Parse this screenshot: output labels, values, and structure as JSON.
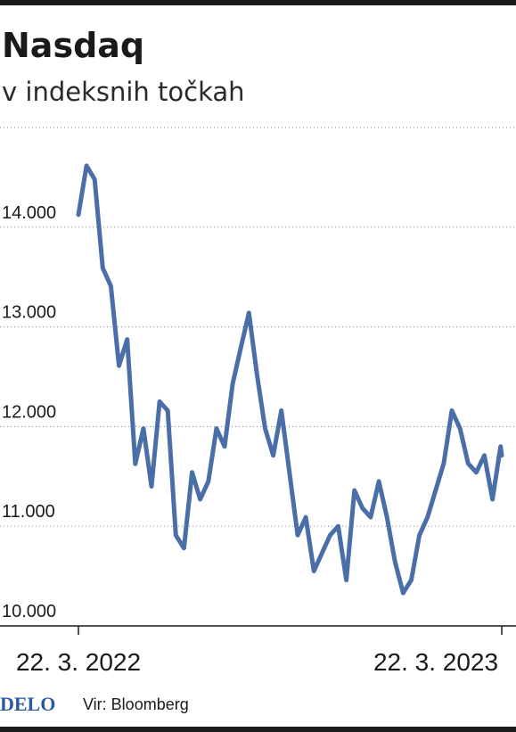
{
  "chart_data": {
    "type": "line",
    "title": "Nasdaq",
    "subtitle": "v indeksnih točkah",
    "x": [
      "2022-03-22",
      "2022-03-29",
      "2022-04-05",
      "2022-04-12",
      "2022-04-19",
      "2022-04-26",
      "2022-05-03",
      "2022-05-10",
      "2022-05-17",
      "2022-05-24",
      "2022-05-31",
      "2022-06-07",
      "2022-06-14",
      "2022-06-21",
      "2022-06-28",
      "2022-07-05",
      "2022-07-12",
      "2022-07-19",
      "2022-07-26",
      "2022-08-02",
      "2022-08-09",
      "2022-08-16",
      "2022-08-23",
      "2022-08-30",
      "2022-09-06",
      "2022-09-13",
      "2022-09-20",
      "2022-09-27",
      "2022-10-04",
      "2022-10-11",
      "2022-10-18",
      "2022-10-25",
      "2022-11-01",
      "2022-11-08",
      "2022-11-15",
      "2022-11-22",
      "2022-11-29",
      "2022-12-06",
      "2022-12-13",
      "2022-12-20",
      "2022-12-27",
      "2023-01-03",
      "2023-01-10",
      "2023-01-17",
      "2023-01-24",
      "2023-01-31",
      "2023-02-07",
      "2023-02-14",
      "2023-02-21",
      "2023-02-28",
      "2023-03-07",
      "2023-03-14",
      "2023-03-21",
      "2023-03-22"
    ],
    "series": [
      {
        "name": "Nasdaq",
        "color": "#4a6fa8",
        "values": [
          14125,
          14616,
          14480,
          13590,
          13410,
          12610,
          12875,
          11625,
          11980,
          11400,
          12250,
          12160,
          10910,
          10780,
          11540,
          11270,
          11450,
          11980,
          11800,
          12430,
          12790,
          13140,
          12520,
          11980,
          11710,
          12160,
          11540,
          10910,
          11090,
          10550,
          10730,
          10910,
          11000,
          10460,
          11360,
          11180,
          11090,
          11450,
          11090,
          10640,
          10330,
          10460,
          10910,
          11090,
          11360,
          11630,
          12160,
          11980,
          11630,
          11540,
          11710,
          11270,
          11800,
          11710
        ]
      }
    ],
    "xlim": [
      "2022-03-22",
      "2023-03-22"
    ],
    "xticks": [
      {
        "value": "2022-03-22",
        "label": "22. 3. 2022"
      },
      {
        "value": "2023-03-22",
        "label": "22. 3. 2023"
      }
    ],
    "ylim": [
      10000,
      15000
    ],
    "yticks": [
      {
        "value": 10000,
        "label": "10.000"
      },
      {
        "value": 11000,
        "label": "11.000"
      },
      {
        "value": 12000,
        "label": "12.000"
      },
      {
        "value": 13000,
        "label": "13.000"
      },
      {
        "value": 14000,
        "label": "14.000"
      }
    ],
    "grid": true,
    "logo": "DELO",
    "source": "Vir: Bloomberg"
  }
}
